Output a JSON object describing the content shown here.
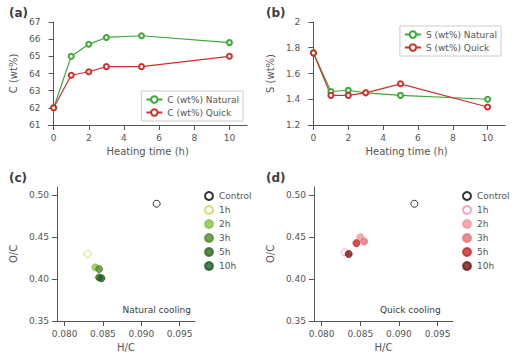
{
  "chart_data": [
    {
      "type": "line",
      "title": "(a)",
      "xlabel": "Heating time (h)",
      "ylabel": "C (wt%)",
      "x": [
        0,
        1,
        2,
        3,
        5,
        10
      ],
      "series": [
        {
          "name": "C (wt%) Natural",
          "color": "#3aaa35",
          "values": [
            62.0,
            65.0,
            65.7,
            66.1,
            66.2,
            65.8
          ]
        },
        {
          "name": "C (wt%) Quick",
          "color": "#d32f2f",
          "values": [
            62.0,
            63.9,
            64.1,
            64.4,
            64.4,
            65.0
          ]
        }
      ],
      "marker": "open_circle",
      "xlim": [
        -0.3,
        11
      ],
      "xticks": [
        0,
        2,
        4,
        6,
        8,
        10
      ],
      "ylim": [
        61,
        67
      ],
      "yticks": [
        61,
        62,
        63,
        64,
        65,
        66,
        67
      ],
      "legend": "lower right",
      "grid": false
    },
    {
      "type": "line",
      "title": "(b)",
      "xlabel": "Heating time (h)",
      "ylabel": "S (wt%)",
      "x": [
        0,
        1,
        2,
        3,
        5,
        10
      ],
      "series": [
        {
          "name": "S (wt%) Natural",
          "color": "#3aaa35",
          "values": [
            1.76,
            1.46,
            1.47,
            1.45,
            1.43,
            1.4
          ]
        },
        {
          "name": "S (wt%) Quick",
          "color": "#d32f2f",
          "values": [
            1.76,
            1.43,
            1.43,
            1.45,
            1.52,
            1.34
          ]
        }
      ],
      "marker": "open_circle",
      "xlim": [
        -0.3,
        11
      ],
      "xticks": [
        0,
        2,
        4,
        6,
        8,
        10
      ],
      "ylim": [
        1.2,
        2.0
      ],
      "yticks": [
        1.2,
        1.4,
        1.6,
        1.8,
        2
      ],
      "legend": "upper right",
      "grid": false
    },
    {
      "type": "scatter",
      "title": "(c)",
      "xlabel": "H/C",
      "ylabel": "O/C",
      "annotations": [
        "Natural cooling"
      ],
      "series": [
        {
          "name": "Control",
          "color": "black",
          "marker": "open_circle",
          "x": [
            0.092
          ],
          "values": [
            0.49
          ]
        },
        {
          "name": "1h",
          "color": "#c8d44e",
          "marker": "open_circle",
          "x": [
            0.083
          ],
          "values": [
            0.43
          ]
        },
        {
          "name": "2h",
          "color": "#8bc34a",
          "marker": "circle",
          "x": [
            0.084
          ],
          "values": [
            0.414
          ]
        },
        {
          "name": "3h",
          "color": "#558b2f",
          "marker": "circle",
          "x": [
            0.0845
          ],
          "values": [
            0.412
          ]
        },
        {
          "name": "5h",
          "color": "#33691e",
          "marker": "circle",
          "x": [
            0.0845
          ],
          "values": [
            0.402
          ]
        },
        {
          "name": "10h",
          "color": "#1b5e20",
          "marker": "circle",
          "x": [
            0.0848
          ],
          "values": [
            0.401
          ]
        }
      ],
      "xlim": [
        0.079,
        0.097
      ],
      "xticks": [
        {
          "value": 0.08,
          "label": "0.080"
        },
        {
          "value": 0.085,
          "label": "0.085"
        },
        {
          "value": 0.09,
          "label": "0.090"
        },
        {
          "value": 0.095,
          "label": "0.095"
        }
      ],
      "ylim": [
        0.35,
        0.51
      ],
      "yticks": [
        0.35,
        {
          "value": 0.4,
          "label": "0.40"
        },
        0.45,
        {
          "value": 0.5,
          "label": "0.50"
        }
      ],
      "legend": "right",
      "grid": false
    },
    {
      "type": "scatter",
      "title": "(d)",
      "xlabel": "H/C",
      "ylabel": "O/C",
      "annotations": [
        "Quick cooling"
      ],
      "series": [
        {
          "name": "Control",
          "color": "black",
          "marker": "open_circle",
          "x": [
            0.092
          ],
          "values": [
            0.49
          ]
        },
        {
          "name": "1h",
          "color": "#f48fb1",
          "marker": "open_circle",
          "x": [
            0.083
          ],
          "values": [
            0.432
          ]
        },
        {
          "name": "2h",
          "color": "#ef9a9a",
          "marker": "circle",
          "x": [
            0.085
          ],
          "values": [
            0.45
          ]
        },
        {
          "name": "3h",
          "color": "#e57373",
          "marker": "circle",
          "x": [
            0.0855
          ],
          "values": [
            0.445
          ]
        },
        {
          "name": "5h",
          "color": "#c62828",
          "marker": "circle",
          "x": [
            0.0845
          ],
          "values": [
            0.443
          ]
        },
        {
          "name": "10h",
          "color": "#7b1414",
          "marker": "circle",
          "x": [
            0.0835
          ],
          "values": [
            0.43
          ]
        }
      ],
      "xlim": [
        0.079,
        0.097
      ],
      "xticks": [
        {
          "value": 0.08,
          "label": "0.080"
        },
        {
          "value": 0.085,
          "label": "0.085"
        },
        {
          "value": 0.09,
          "label": "0.090"
        },
        {
          "value": 0.095,
          "label": "0.095"
        }
      ],
      "ylim": [
        0.35,
        0.51
      ],
      "yticks": [
        0.35,
        {
          "value": 0.4,
          "label": "0.40"
        },
        0.45,
        {
          "value": 0.5,
          "label": "0.50"
        }
      ],
      "legend": "right",
      "grid": false
    }
  ]
}
